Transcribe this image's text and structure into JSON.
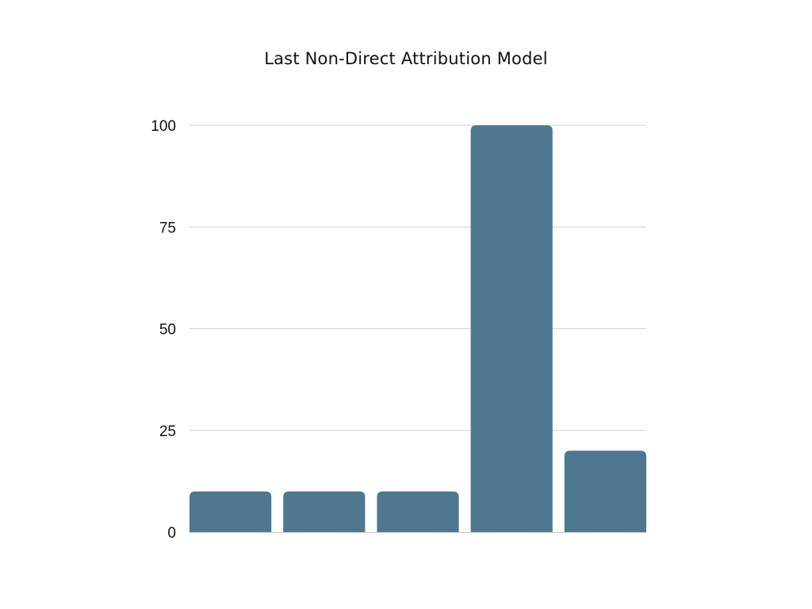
{
  "chart_data": {
    "type": "bar",
    "title": "Last Non-Direct Attribution Model",
    "xlabel": "",
    "ylabel": "",
    "categories": [
      "",
      "",
      "",
      "",
      ""
    ],
    "values": [
      10,
      10,
      10,
      100,
      20
    ],
    "ylim": [
      0,
      100
    ],
    "yticks": [
      0,
      25,
      50,
      75,
      100
    ],
    "grid": true,
    "legend": "none",
    "bar_color": "#4e7891"
  }
}
